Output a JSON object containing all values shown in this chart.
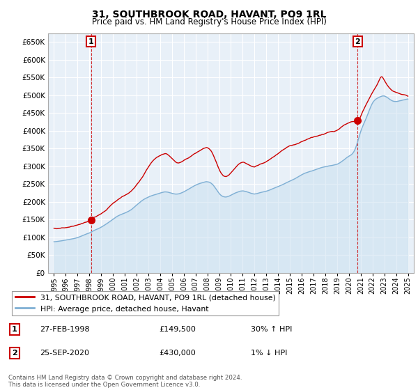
{
  "title": "31, SOUTHBROOK ROAD, HAVANT, PO9 1RL",
  "subtitle": "Price paid vs. HM Land Registry's House Price Index (HPI)",
  "legend_line1": "31, SOUTHBROOK ROAD, HAVANT, PO9 1RL (detached house)",
  "legend_line2": "HPI: Average price, detached house, Havant",
  "table_rows": [
    {
      "num": "1",
      "date": "27-FEB-1998",
      "price": "£149,500",
      "change": "30% ↑ HPI"
    },
    {
      "num": "2",
      "date": "25-SEP-2020",
      "price": "£430,000",
      "change": "1% ↓ HPI"
    }
  ],
  "footnote": "Contains HM Land Registry data © Crown copyright and database right 2024.\nThis data is licensed under the Open Government Licence v3.0.",
  "sale1_year": 1998.15,
  "sale1_price": 149500,
  "sale2_year": 2020.73,
  "sale2_price": 430000,
  "red_color": "#cc0000",
  "blue_color": "#7eafd4",
  "blue_fill": "#ddeeff",
  "background_color": "#ffffff",
  "grid_color": "#cccccc",
  "ylim_min": 0,
  "ylim_max": 675000,
  "yticks": [
    0,
    50000,
    100000,
    150000,
    200000,
    250000,
    300000,
    350000,
    400000,
    450000,
    500000,
    550000,
    600000,
    650000
  ],
  "xlim_min": 1994.5,
  "xlim_max": 2025.5
}
